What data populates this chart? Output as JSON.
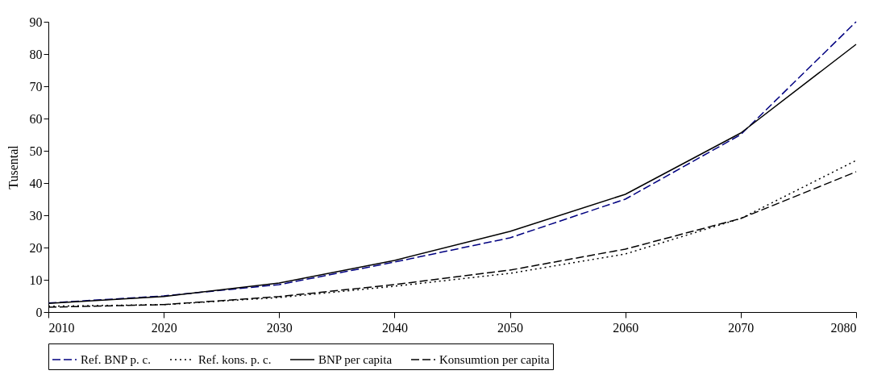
{
  "chart_data": {
    "type": "line",
    "ylabel": "Tusental",
    "x": [
      2010,
      2020,
      2030,
      2040,
      2050,
      2060,
      2070,
      2080
    ],
    "series": [
      {
        "name": "Ref. BNP p. c.",
        "color": "#000080",
        "line_style": "dashed",
        "values": [
          2.8,
          5,
          8.5,
          15.5,
          23,
          35,
          55,
          90
        ]
      },
      {
        "name": "Ref. kons. p. c.",
        "color": "#000000",
        "line_style": "dotted",
        "values": [
          1.8,
          2.3,
          4.5,
          8,
          12,
          18,
          29,
          47
        ]
      },
      {
        "name": "BNP per capita",
        "color": "#000000",
        "line_style": "solid",
        "values": [
          2.7,
          4.8,
          9,
          16,
          25,
          36.5,
          55.5,
          83
        ]
      },
      {
        "name": "Konsumtion per capita",
        "color": "#000000",
        "line_style": "dashed",
        "values": [
          1.5,
          2.3,
          4.8,
          8.5,
          13,
          19.5,
          29,
          43.5
        ]
      }
    ],
    "xlim": [
      2010,
      2080
    ],
    "xticks": [
      2010,
      2020,
      2030,
      2040,
      2050,
      2060,
      2070,
      2080
    ],
    "ylim": [
      0,
      90
    ],
    "yticks": [
      0,
      10,
      20,
      30,
      40,
      50,
      60,
      70,
      80,
      90
    ],
    "grid": false,
    "legend": "bottom",
    "marker": "none"
  }
}
